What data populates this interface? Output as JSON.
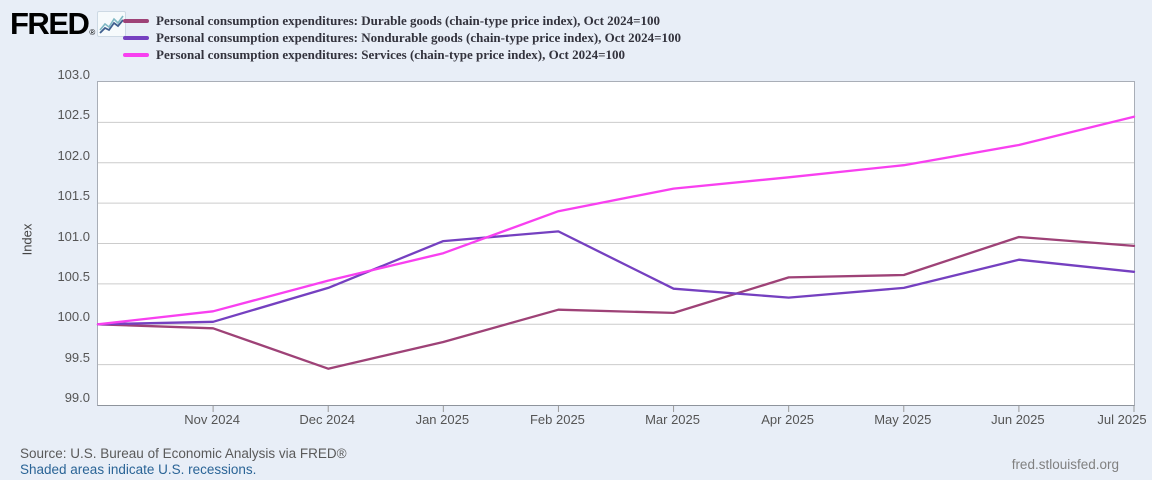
{
  "logo": {
    "text": "FRED",
    "registered": "®",
    "icon": "fred-sparkline-icon"
  },
  "footer": {
    "source": "Source: U.S. Bureau of Economic Analysis via FRED®",
    "recessions_link": "Shaded areas indicate U.S. recessions.",
    "site": "fred.stlouisfed.org"
  },
  "colors": {
    "page_background": "#e8eef7",
    "plot_background": "#ffffff",
    "gridline": "#cccccc",
    "axis_border": "#a9aeb7",
    "tick": "#999999",
    "tick_label": "#555555",
    "link_blue": "#2a6496",
    "durable": "#9e4277",
    "nondurable": "#7540c0",
    "services": "#f840f0"
  },
  "chart_data": {
    "type": "line",
    "title": "",
    "xlabel": "",
    "ylabel": "Index",
    "ylim": [
      99.0,
      103.0
    ],
    "y_ticks": [
      103.0,
      102.5,
      102.0,
      101.5,
      101.0,
      100.5,
      100.0,
      99.5,
      99.0
    ],
    "grid": "horizontal-only",
    "legend_position": "top-left",
    "x": [
      "Oct 2024",
      "Nov 2024",
      "Dec 2024",
      "Jan 2025",
      "Feb 2025",
      "Mar 2025",
      "Apr 2025",
      "May 2025",
      "Jun 2025",
      "Jul 2025"
    ],
    "x_tick_labels": [
      "Nov 2024",
      "Dec 2024",
      "Jan 2025",
      "Feb 2025",
      "Mar 2025",
      "Apr 2025",
      "May 2025",
      "Jun 2025",
      "Jul 2025"
    ],
    "series": [
      {
        "name": "Personal consumption expenditures: Durable goods (chain-type price index), Oct 2024=100",
        "color": "#9e4277",
        "values": [
          100.0,
          99.95,
          99.45,
          99.78,
          100.18,
          100.14,
          100.58,
          100.61,
          101.08,
          100.97
        ]
      },
      {
        "name": "Personal consumption expenditures: Nondurable goods (chain-type price index), Oct 2024=100",
        "color": "#7540c0",
        "values": [
          100.0,
          100.03,
          100.45,
          101.03,
          101.15,
          100.44,
          100.33,
          100.45,
          100.8,
          100.65
        ]
      },
      {
        "name": "Personal consumption expenditures: Services (chain-type price index), Oct 2024=100",
        "color": "#f840f0",
        "values": [
          100.0,
          100.16,
          100.54,
          100.88,
          101.4,
          101.68,
          101.82,
          101.97,
          102.22,
          102.57
        ]
      }
    ]
  }
}
